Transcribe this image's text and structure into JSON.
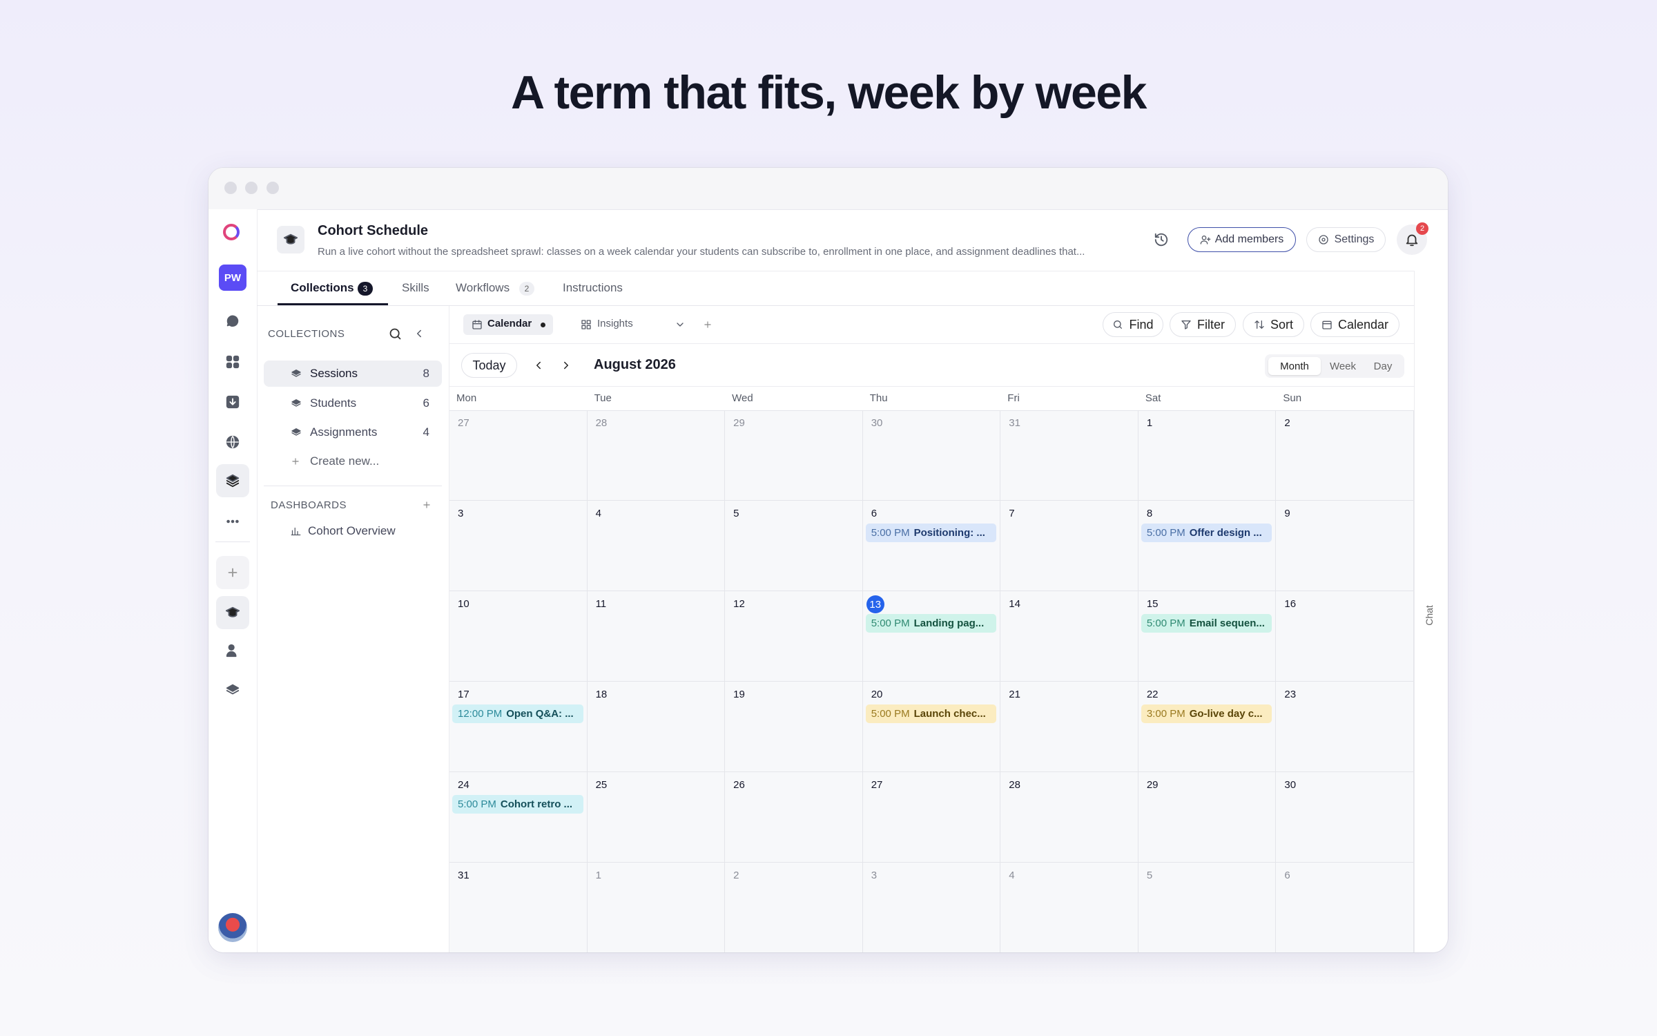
{
  "headline": "A term that fits, week by week",
  "rail": {
    "avatar": "PW"
  },
  "header": {
    "title": "Cohort Schedule",
    "description": "Run a live cohort without the spreadsheet sprawl: classes on a week calendar your students can subscribe to, enrollment in one place, and assignment deadlines that...",
    "add_members": "Add members",
    "settings": "Settings",
    "notifications": 2
  },
  "tabs": [
    {
      "label": "Collections",
      "count": 3
    },
    {
      "label": "Skills"
    },
    {
      "label": "Workflows",
      "count": 2
    },
    {
      "label": "Instructions"
    }
  ],
  "sidebar": {
    "heading": "COLLECTIONS",
    "collections": [
      {
        "label": "Sessions",
        "count": 8
      },
      {
        "label": "Students",
        "count": 6
      },
      {
        "label": "Assignments",
        "count": 4
      }
    ],
    "create": "Create new...",
    "dashboards_heading": "DASHBOARDS",
    "dashboards": [
      "Cohort Overview"
    ]
  },
  "views": [
    "Calendar",
    "Insights"
  ],
  "toolbar": [
    "Find",
    "Filter",
    "Sort",
    "Calendar"
  ],
  "chat": "Chat",
  "calendar": {
    "today_button": "Today",
    "month": "August 2026",
    "modes": [
      "Month",
      "Week",
      "Day"
    ],
    "weekdays": [
      "Mon",
      "Tue",
      "Wed",
      "Thu",
      "Fri",
      "Sat",
      "Sun"
    ],
    "days": [
      {
        "day": 27,
        "outside": true
      },
      {
        "day": 28,
        "outside": true
      },
      {
        "day": 29,
        "outside": true
      },
      {
        "day": 30,
        "outside": true
      },
      {
        "day": 31,
        "outside": true
      },
      {
        "day": 1
      },
      {
        "day": 2
      },
      {
        "day": 3
      },
      {
        "day": 4
      },
      {
        "day": 5
      },
      {
        "day": 6,
        "events": [
          {
            "time": "5:00 PM",
            "title": "Positioning: ...",
            "color": "blue"
          }
        ]
      },
      {
        "day": 7
      },
      {
        "day": 8,
        "events": [
          {
            "time": "5:00 PM",
            "title": "Offer design ...",
            "color": "blue"
          }
        ]
      },
      {
        "day": 9
      },
      {
        "day": 10
      },
      {
        "day": 11
      },
      {
        "day": 12
      },
      {
        "day": 13,
        "today": true,
        "events": [
          {
            "time": "5:00 PM",
            "title": "Landing pag...",
            "color": "green"
          }
        ]
      },
      {
        "day": 14
      },
      {
        "day": 15,
        "events": [
          {
            "time": "5:00 PM",
            "title": "Email sequen...",
            "color": "green"
          }
        ]
      },
      {
        "day": 16
      },
      {
        "day": 17,
        "events": [
          {
            "time": "12:00 PM",
            "title": "Open Q&A: ...",
            "color": "cyan"
          }
        ]
      },
      {
        "day": 18
      },
      {
        "day": 19
      },
      {
        "day": 20,
        "events": [
          {
            "time": "5:00 PM",
            "title": "Launch chec...",
            "color": "yellow"
          }
        ]
      },
      {
        "day": 21
      },
      {
        "day": 22,
        "events": [
          {
            "time": "3:00 PM",
            "title": "Go-live day c...",
            "color": "yellow"
          }
        ]
      },
      {
        "day": 23
      },
      {
        "day": 24,
        "events": [
          {
            "time": "5:00 PM",
            "title": "Cohort retro ...",
            "color": "cyan"
          }
        ]
      },
      {
        "day": 25
      },
      {
        "day": 26
      },
      {
        "day": 27
      },
      {
        "day": 28
      },
      {
        "day": 29
      },
      {
        "day": 30
      },
      {
        "day": 31
      },
      {
        "day": 1,
        "outside": true
      },
      {
        "day": 2,
        "outside": true
      },
      {
        "day": 3,
        "outside": true
      },
      {
        "day": 4,
        "outside": true
      },
      {
        "day": 5,
        "outside": true
      },
      {
        "day": 6,
        "outside": true
      }
    ]
  }
}
